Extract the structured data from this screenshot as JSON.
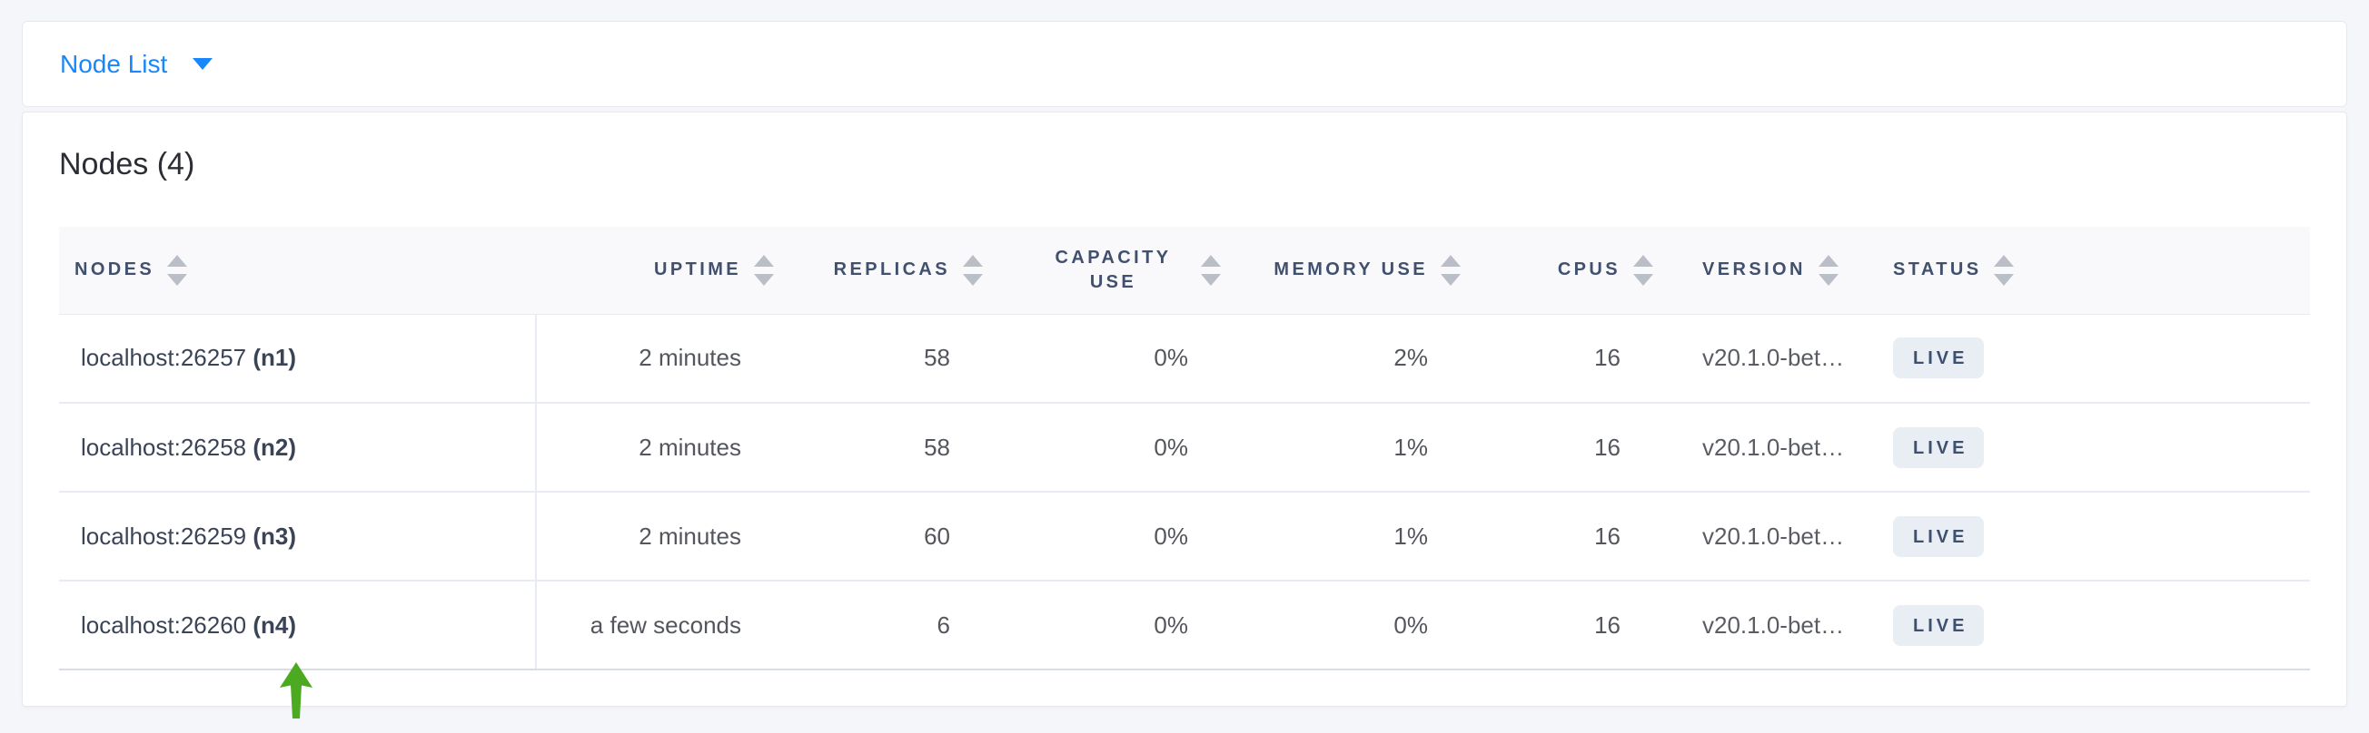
{
  "topbar": {
    "view_label": "Node List"
  },
  "card": {
    "title": "Nodes (4)"
  },
  "table": {
    "columns": [
      {
        "id": "nodes",
        "label": "NODES",
        "align": "left",
        "sortable": true
      },
      {
        "id": "uptime",
        "label": "UPTIME",
        "align": "right",
        "sortable": true
      },
      {
        "id": "replicas",
        "label": "REPLICAS",
        "align": "right",
        "sortable": true
      },
      {
        "id": "capacity_use",
        "label": "CAPACITY USE",
        "align": "right",
        "sortable": true
      },
      {
        "id": "memory_use",
        "label": "MEMORY USE",
        "align": "right",
        "sortable": true
      },
      {
        "id": "cpus",
        "label": "CPUS",
        "align": "right",
        "sortable": true
      },
      {
        "id": "version",
        "label": "VERSION",
        "align": "left",
        "sortable": true
      },
      {
        "id": "status",
        "label": "STATUS",
        "align": "left",
        "sortable": true
      }
    ],
    "rows": [
      {
        "address": "localhost:26257",
        "node_id": "(n1)",
        "uptime": "2 minutes",
        "replicas": "58",
        "capacity_use": "0%",
        "memory_use": "2%",
        "cpus": "16",
        "version": "v20.1.0-bet…",
        "status": "LIVE"
      },
      {
        "address": "localhost:26258",
        "node_id": "(n2)",
        "uptime": "2 minutes",
        "replicas": "58",
        "capacity_use": "0%",
        "memory_use": "1%",
        "cpus": "16",
        "version": "v20.1.0-bet…",
        "status": "LIVE"
      },
      {
        "address": "localhost:26259",
        "node_id": "(n3)",
        "uptime": "2 minutes",
        "replicas": "60",
        "capacity_use": "0%",
        "memory_use": "1%",
        "cpus": "16",
        "version": "v20.1.0-bet…",
        "status": "LIVE"
      },
      {
        "address": "localhost:26260",
        "node_id": "(n4)",
        "uptime": "a few seconds",
        "replicas": "6",
        "capacity_use": "0%",
        "memory_use": "0%",
        "cpus": "16",
        "version": "v20.1.0-bet…",
        "status": "LIVE"
      }
    ]
  },
  "annotation": {
    "arrow_points_to": "localhost:26260 (n4)"
  },
  "colors": {
    "accent_blue": "#1787fb",
    "header_text": "#41506e",
    "badge_bg": "#e9edf4",
    "badge_text": "#3d5070",
    "arrow_green": "#4caa20"
  }
}
